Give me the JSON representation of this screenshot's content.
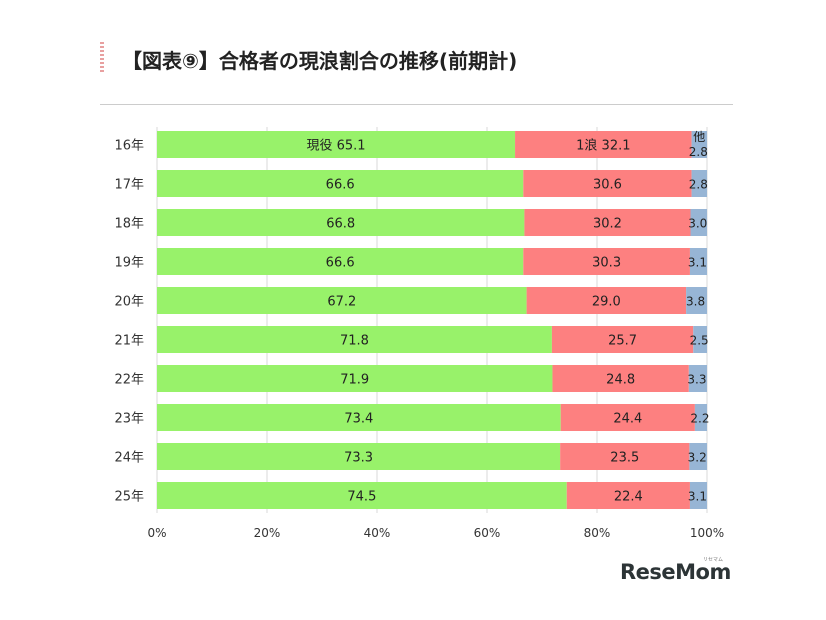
{
  "header": {
    "title": "【図表⑨】合格者の現浪割合の推移(前期計)"
  },
  "logo": {
    "text": "ReseMom",
    "ruby": "リセマム"
  },
  "chart_data": {
    "type": "bar",
    "orientation": "horizontal",
    "stacked": true,
    "categories": [
      "16年",
      "17年",
      "18年",
      "19年",
      "20年",
      "21年",
      "22年",
      "23年",
      "24年",
      "25年"
    ],
    "series": [
      {
        "name": "現役",
        "color": "#98f26a",
        "values": [
          65.1,
          66.6,
          66.8,
          66.6,
          67.2,
          71.8,
          71.9,
          73.4,
          73.3,
          74.5
        ]
      },
      {
        "name": "1浪",
        "color": "#fd8080",
        "values": [
          32.1,
          30.6,
          30.2,
          30.3,
          29.0,
          25.7,
          24.8,
          24.4,
          23.5,
          22.4
        ]
      },
      {
        "name": "他",
        "color": "#97b5d5",
        "values": [
          2.8,
          2.8,
          3.0,
          3.1,
          3.8,
          2.5,
          3.3,
          2.2,
          3.2,
          3.1
        ]
      }
    ],
    "xlim": [
      0,
      100
    ],
    "xticks": [
      "0%",
      "20%",
      "40%",
      "60%",
      "80%",
      "100%"
    ],
    "grid": true,
    "legend": "inline on first bar"
  }
}
